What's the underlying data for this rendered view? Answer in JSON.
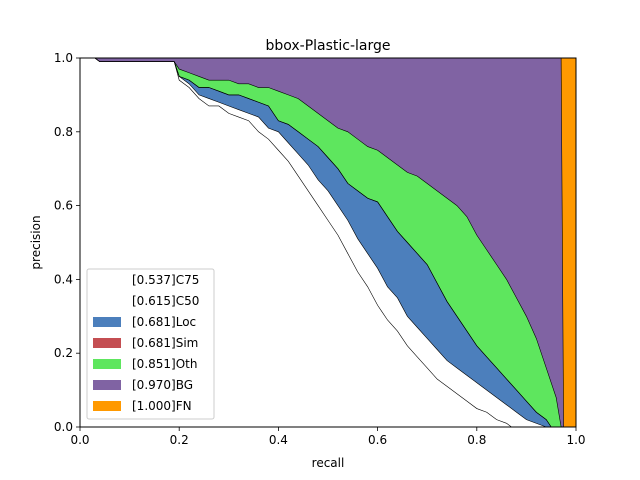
{
  "chart_data": {
    "type": "area",
    "title": "bbox-Plastic-large",
    "xlabel": "recall",
    "ylabel": "precision",
    "xlim": [
      0,
      1
    ],
    "ylim": [
      0,
      1
    ],
    "xticks": [
      "0.0",
      "0.2",
      "0.4",
      "0.6",
      "0.8",
      "1.0"
    ],
    "yticks": [
      "0.0",
      "0.2",
      "0.4",
      "0.6",
      "0.8",
      "1.0"
    ],
    "grid": false,
    "legend_position": "lower-left",
    "series": [
      {
        "name": "[0.537]C75",
        "color": "#ffffff",
        "x": [
          0.0,
          0.03,
          0.04,
          0.19,
          0.2,
          0.22,
          0.24,
          0.26,
          0.28,
          0.3,
          0.32,
          0.34,
          0.36,
          0.38,
          0.4,
          0.42,
          0.44,
          0.46,
          0.48,
          0.5,
          0.52,
          0.54,
          0.56,
          0.58,
          0.6,
          0.62,
          0.64,
          0.66,
          0.68,
          0.7,
          0.72,
          0.74,
          0.76,
          0.78,
          0.8,
          0.82,
          0.84,
          0.86,
          0.87
        ],
        "y": [
          1.0,
          1.0,
          0.99,
          0.99,
          0.94,
          0.92,
          0.89,
          0.87,
          0.87,
          0.85,
          0.84,
          0.83,
          0.8,
          0.78,
          0.75,
          0.72,
          0.68,
          0.64,
          0.6,
          0.56,
          0.52,
          0.47,
          0.42,
          0.38,
          0.33,
          0.29,
          0.26,
          0.22,
          0.19,
          0.16,
          0.13,
          0.11,
          0.09,
          0.07,
          0.05,
          0.04,
          0.02,
          0.01,
          0.0
        ]
      },
      {
        "name": "[0.615]C50",
        "color": "#ffffff",
        "x": [
          0.0,
          0.03,
          0.04,
          0.19,
          0.2,
          0.22,
          0.24,
          0.26,
          0.28,
          0.3,
          0.32,
          0.34,
          0.36,
          0.38,
          0.4,
          0.42,
          0.44,
          0.46,
          0.48,
          0.5,
          0.52,
          0.54,
          0.56,
          0.58,
          0.6,
          0.62,
          0.64,
          0.66,
          0.68,
          0.7,
          0.72,
          0.74,
          0.76,
          0.78,
          0.8,
          0.82,
          0.84,
          0.86,
          0.88,
          0.9,
          0.94
        ],
        "y": [
          1.0,
          1.0,
          0.99,
          0.99,
          0.95,
          0.93,
          0.9,
          0.89,
          0.88,
          0.87,
          0.86,
          0.85,
          0.84,
          0.81,
          0.8,
          0.77,
          0.74,
          0.71,
          0.67,
          0.64,
          0.6,
          0.56,
          0.51,
          0.47,
          0.43,
          0.38,
          0.35,
          0.3,
          0.27,
          0.24,
          0.21,
          0.18,
          0.16,
          0.14,
          0.12,
          0.1,
          0.08,
          0.06,
          0.04,
          0.02,
          0.0
        ]
      },
      {
        "name": "[0.681]Loc",
        "color": "#4c7fbc",
        "x": [
          0.0,
          0.03,
          0.04,
          0.19,
          0.2,
          0.22,
          0.24,
          0.26,
          0.28,
          0.3,
          0.32,
          0.34,
          0.36,
          0.38,
          0.4,
          0.42,
          0.44,
          0.46,
          0.48,
          0.5,
          0.52,
          0.54,
          0.56,
          0.58,
          0.6,
          0.62,
          0.64,
          0.66,
          0.68,
          0.7,
          0.72,
          0.74,
          0.76,
          0.78,
          0.8,
          0.82,
          0.84,
          0.86,
          0.88,
          0.9,
          0.92,
          0.94,
          0.95
        ],
        "y": [
          1.0,
          1.0,
          0.99,
          0.99,
          0.95,
          0.94,
          0.92,
          0.92,
          0.91,
          0.9,
          0.9,
          0.89,
          0.88,
          0.87,
          0.83,
          0.82,
          0.8,
          0.78,
          0.76,
          0.73,
          0.7,
          0.66,
          0.64,
          0.62,
          0.61,
          0.57,
          0.53,
          0.5,
          0.47,
          0.44,
          0.39,
          0.34,
          0.3,
          0.26,
          0.22,
          0.19,
          0.16,
          0.13,
          0.1,
          0.07,
          0.04,
          0.02,
          0.0
        ]
      },
      {
        "name": "[0.681]Sim",
        "color": "#c44e52",
        "x": [
          0.0,
          0.03,
          0.04,
          0.19,
          0.2,
          0.22,
          0.24,
          0.26,
          0.28,
          0.3,
          0.32,
          0.34,
          0.36,
          0.38,
          0.4,
          0.42,
          0.44,
          0.46,
          0.48,
          0.5,
          0.52,
          0.54,
          0.56,
          0.58,
          0.6,
          0.62,
          0.64,
          0.66,
          0.68,
          0.7,
          0.72,
          0.74,
          0.76,
          0.78,
          0.8,
          0.82,
          0.84,
          0.86,
          0.88,
          0.9,
          0.92,
          0.94,
          0.95
        ],
        "y": [
          1.0,
          1.0,
          0.99,
          0.99,
          0.95,
          0.94,
          0.92,
          0.92,
          0.91,
          0.9,
          0.9,
          0.89,
          0.88,
          0.87,
          0.83,
          0.82,
          0.8,
          0.78,
          0.76,
          0.73,
          0.7,
          0.66,
          0.64,
          0.62,
          0.61,
          0.57,
          0.53,
          0.5,
          0.47,
          0.44,
          0.39,
          0.34,
          0.3,
          0.26,
          0.22,
          0.19,
          0.16,
          0.13,
          0.1,
          0.07,
          0.04,
          0.02,
          0.0
        ]
      },
      {
        "name": "[0.851]Oth",
        "color": "#5ee65e",
        "x": [
          0.0,
          0.03,
          0.04,
          0.19,
          0.2,
          0.22,
          0.24,
          0.26,
          0.28,
          0.3,
          0.32,
          0.34,
          0.36,
          0.38,
          0.4,
          0.42,
          0.44,
          0.46,
          0.48,
          0.5,
          0.52,
          0.54,
          0.56,
          0.58,
          0.6,
          0.62,
          0.64,
          0.66,
          0.68,
          0.7,
          0.72,
          0.74,
          0.76,
          0.78,
          0.8,
          0.82,
          0.84,
          0.86,
          0.88,
          0.9,
          0.92,
          0.94,
          0.96,
          0.97
        ],
        "y": [
          1.0,
          1.0,
          0.99,
          0.99,
          0.97,
          0.96,
          0.95,
          0.94,
          0.94,
          0.94,
          0.93,
          0.93,
          0.92,
          0.92,
          0.91,
          0.9,
          0.89,
          0.87,
          0.85,
          0.83,
          0.81,
          0.8,
          0.78,
          0.76,
          0.75,
          0.73,
          0.71,
          0.69,
          0.68,
          0.66,
          0.64,
          0.62,
          0.6,
          0.57,
          0.52,
          0.48,
          0.44,
          0.4,
          0.35,
          0.3,
          0.24,
          0.16,
          0.08,
          0.0
        ]
      },
      {
        "name": "[0.970]BG",
        "color": "#8063a3",
        "x": [
          0.0,
          0.97,
          0.975
        ],
        "y": [
          1.0,
          1.0,
          0.0
        ]
      },
      {
        "name": "[1.000]FN",
        "color": "#ff9900",
        "x": [
          0.0,
          1.0,
          1.0
        ],
        "y": [
          1.0,
          1.0,
          0.0
        ]
      }
    ]
  }
}
